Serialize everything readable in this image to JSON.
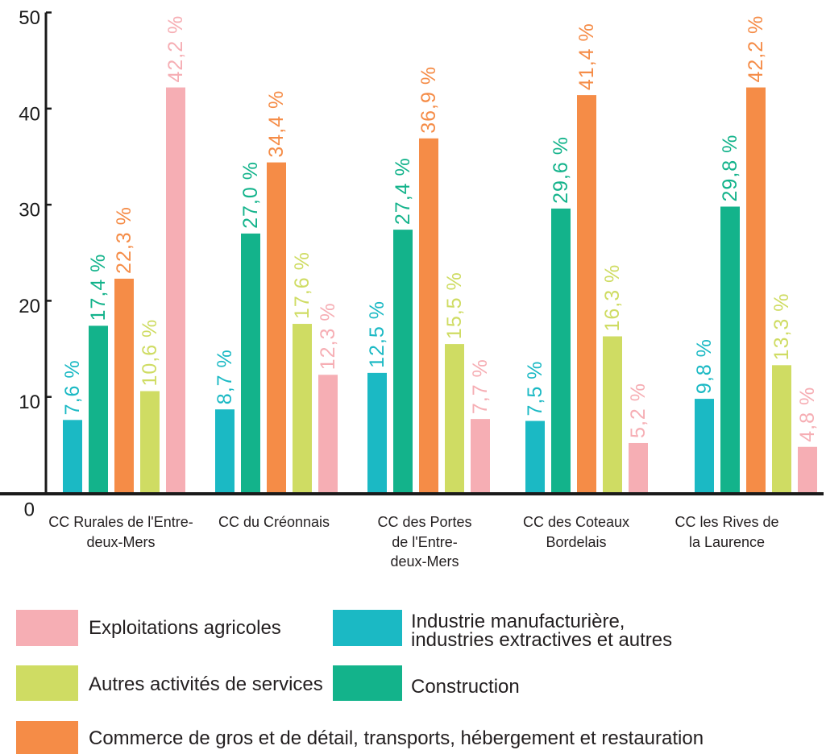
{
  "chart_data": {
    "type": "bar",
    "categories": [
      "CC Rurales de l'Entre-\ndeux-Mers",
      "CC du Créonnais",
      "CC des Portes\nde l'Entre-\ndeux-Mers",
      "CC des Coteaux\nBordelais",
      "CC les Rives de\nla Laurence"
    ],
    "series": [
      {
        "name": "Industrie manufacturière,\nindustries extractives et autres",
        "color": "#1bb9c4",
        "values": [
          7.6,
          8.7,
          12.5,
          7.5,
          9.8
        ],
        "labels": [
          "7,6 %",
          "8,7 %",
          "12,5 %",
          "7,5 %",
          "9,8 %"
        ]
      },
      {
        "name": "Construction",
        "color": "#13b38b",
        "values": [
          17.4,
          27.0,
          27.4,
          29.6,
          29.8
        ],
        "labels": [
          "17,4 %",
          "27,0 %",
          "27,4 %",
          "29,6 %",
          "29,8 %"
        ]
      },
      {
        "name": "Commerce de gros et de détail, transports, hébergement et restauration",
        "color": "#f58c47",
        "values": [
          22.3,
          34.4,
          36.9,
          41.4,
          42.2
        ],
        "labels": [
          "22,3 %",
          "34,4 %",
          "36,9 %",
          "41,4 %",
          "42,2 %"
        ]
      },
      {
        "name": "Autres activités de services",
        "color": "#cfdc63",
        "values": [
          10.6,
          17.6,
          15.5,
          16.3,
          13.3
        ],
        "labels": [
          "10,6 %",
          "17,6 %",
          "15,5 %",
          "16,3 %",
          "13,3 %"
        ]
      },
      {
        "name": "Exploitations agricoles",
        "color": "#f6aeb4",
        "values": [
          42.2,
          12.3,
          7.7,
          5.2,
          4.8
        ],
        "labels": [
          "42,2 %",
          "12,3 %",
          "7,7 %",
          "5,2 %",
          "4,8 %"
        ]
      }
    ],
    "yticks": [
      0,
      10,
      20,
      30,
      40,
      50
    ],
    "ylim": [
      0,
      50
    ],
    "grid": false,
    "legend": "bottom"
  }
}
